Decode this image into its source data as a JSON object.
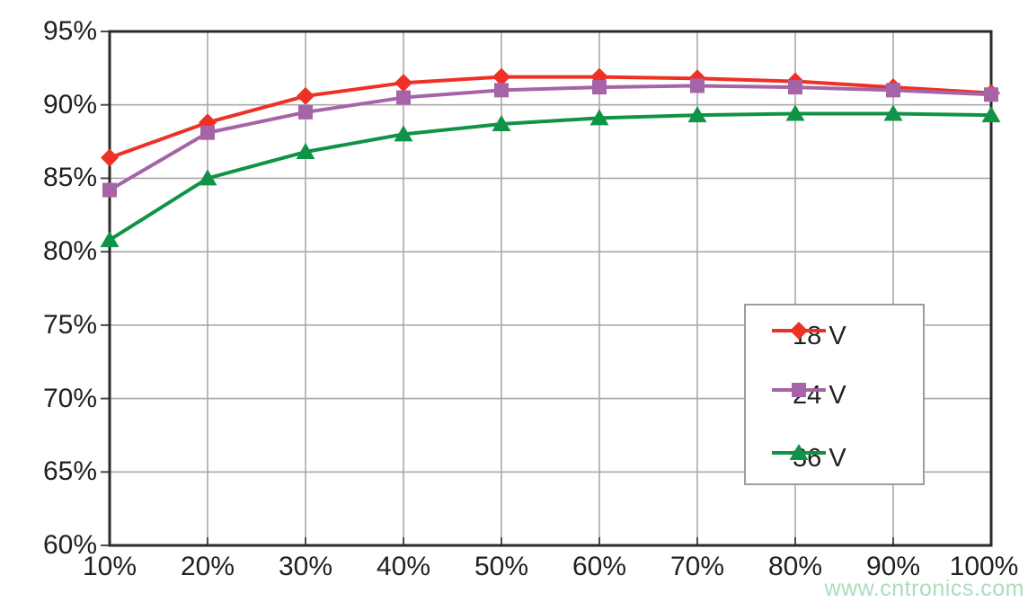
{
  "watermark": "www.cntronics.com",
  "colors": {
    "background": "#ffffff",
    "frame": "#2b2a29",
    "gridline": "#a9a9a9",
    "tick": "#4a4a4a",
    "text": "#231f20",
    "legend_border": "#9d9d9c",
    "watermark": "#abdcbd"
  },
  "chart_data": {
    "type": "line",
    "title": "",
    "xlabel": "",
    "ylabel": "",
    "categories": [
      "10%",
      "20%",
      "30%",
      "40%",
      "50%",
      "60%",
      "70%",
      "80%",
      "90%",
      "100%"
    ],
    "x_values": [
      10,
      20,
      30,
      40,
      50,
      60,
      70,
      80,
      90,
      100
    ],
    "y_ticks": [
      "95%",
      "90%",
      "85%",
      "80%",
      "75%",
      "70%",
      "65%",
      "60%"
    ],
    "y_tick_values": [
      95,
      90,
      85,
      80,
      75,
      70,
      65,
      60
    ],
    "ylim": [
      60,
      95
    ],
    "grid": true,
    "legend_position": "inside-right",
    "series": [
      {
        "name": "18 V",
        "color": "#ee3124",
        "marker": "diamond",
        "values": [
          86.4,
          88.8,
          90.6,
          91.5,
          91.9,
          91.9,
          91.8,
          91.6,
          91.2,
          90.8
        ]
      },
      {
        "name": "24 V",
        "color": "#a564a8",
        "marker": "square",
        "values": [
          84.2,
          88.1,
          89.5,
          90.5,
          91.0,
          91.2,
          91.3,
          91.2,
          91.0,
          90.7
        ]
      },
      {
        "name": "36 V",
        "color": "#0f9347",
        "marker": "triangle",
        "values": [
          80.8,
          85.0,
          86.8,
          88.0,
          88.7,
          89.1,
          89.3,
          89.4,
          89.4,
          89.3
        ]
      }
    ]
  }
}
